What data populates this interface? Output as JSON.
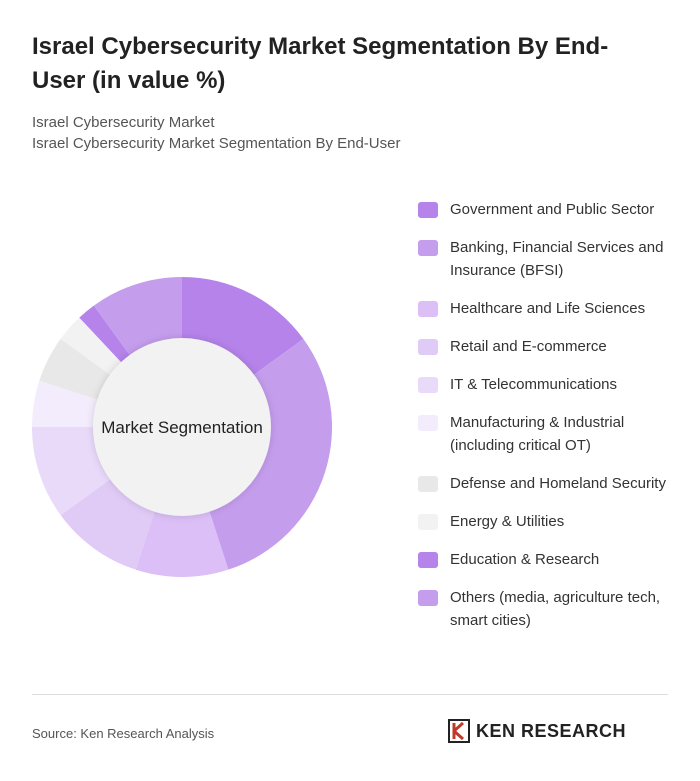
{
  "header": {
    "title": "Israel Cybersecurity Market Segmentation By End-User (in value %)",
    "subtitle1": "Israel Cybersecurity Market",
    "subtitle2": "Israel Cybersecurity Market Segmentation By End-User"
  },
  "chart_data": {
    "type": "pie",
    "variant": "donut",
    "center_label": "Market Segmentation",
    "legend_position": "right",
    "categories": [
      "Government and Public Sector",
      "Banking, Financial Services and Insurance (BFSI)",
      "Healthcare and Life Sciences",
      "Retail and E-commerce",
      "IT & Telecommunications",
      "Manufacturing & Industrial (including critical OT)",
      "Defense and Homeland Security",
      "Energy & Utilities",
      "Education & Research",
      "Others (media, agriculture tech, smart cities)"
    ],
    "values": [
      15,
      30,
      10,
      10,
      10,
      5,
      5,
      3,
      2,
      10
    ],
    "colors": [
      "#b583ea",
      "#c59ded",
      "#dbbff6",
      "#e0cbf7",
      "#e9dafa",
      "#f3ecfc",
      "#e8e8e8",
      "#f2f2f2",
      "#b583ea",
      "#c59ded"
    ]
  },
  "footer": {
    "source": "Source: Ken Research Analysis",
    "logo_text": "KEN RESEARCH"
  }
}
